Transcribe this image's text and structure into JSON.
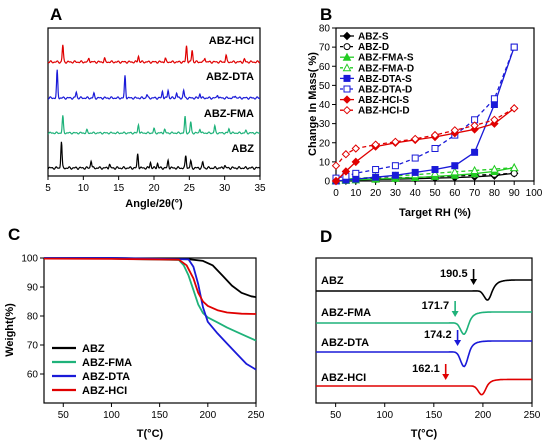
{
  "panels": {
    "a": "A",
    "b": "B",
    "c": "C",
    "d": "D"
  },
  "colors": {
    "ABZ": "#000000",
    "ABZ-FMA": "#1fb27a",
    "ABZ-DTA": "#1a1ad8",
    "ABZ-HCI": "#e00000",
    "FMA-S": "#22cc22",
    "DTA-S": "#1a1ad8",
    "HCI-S": "#e00000"
  },
  "chart_data": [
    {
      "id": "A",
      "type": "line",
      "xlabel": "Angle/2θ(°)",
      "ylabel": "",
      "xlim": [
        5,
        35
      ],
      "xticks": [
        5,
        10,
        15,
        20,
        25,
        30,
        35
      ],
      "series": [
        {
          "name": "ABZ-HCI",
          "color": "#e00000",
          "peaks": [
            [
              7.1,
              1.0
            ],
            [
              10.8,
              0.22
            ],
            [
              13.0,
              0.2
            ],
            [
              17.8,
              0.35
            ],
            [
              21.6,
              0.2
            ],
            [
              24.6,
              0.95
            ],
            [
              25.4,
              0.7
            ],
            [
              27.2,
              0.25
            ],
            [
              30.2,
              0.4
            ],
            [
              32.8,
              0.15
            ]
          ]
        },
        {
          "name": "ABZ-DTA",
          "color": "#1a1ad8",
          "peaks": [
            [
              6.3,
              1.6
            ],
            [
              9.0,
              0.35
            ],
            [
              11.5,
              0.25
            ],
            [
              15.9,
              1.3
            ],
            [
              19.0,
              0.2
            ],
            [
              21.2,
              0.4
            ],
            [
              22.0,
              0.45
            ],
            [
              23.2,
              0.3
            ],
            [
              24.2,
              0.45
            ],
            [
              26.5,
              0.25
            ],
            [
              29.0,
              0.2
            ],
            [
              31.5,
              0.15
            ]
          ]
        },
        {
          "name": "ABZ-FMA",
          "color": "#1fb27a",
          "peaks": [
            [
              7.1,
              1.2
            ],
            [
              10.5,
              0.2
            ],
            [
              17.8,
              0.6
            ],
            [
              20.0,
              0.3
            ],
            [
              21.5,
              0.25
            ],
            [
              24.4,
              1.15
            ],
            [
              25.2,
              0.8
            ],
            [
              26.5,
              0.3
            ],
            [
              28.6,
              0.5
            ],
            [
              30.6,
              0.3
            ],
            [
              33.0,
              0.15
            ]
          ]
        },
        {
          "name": "ABZ",
          "color": "#000000",
          "peaks": [
            [
              6.9,
              1.4
            ],
            [
              11.1,
              0.4
            ],
            [
              13.7,
              0.2
            ],
            [
              17.7,
              0.75
            ],
            [
              19.5,
              0.3
            ],
            [
              20.5,
              0.25
            ],
            [
              22.0,
              0.4
            ],
            [
              24.5,
              0.65
            ],
            [
              25.2,
              0.35
            ],
            [
              26.9,
              0.3
            ],
            [
              30.0,
              0.15
            ]
          ]
        }
      ]
    },
    {
      "id": "B",
      "type": "line",
      "xlabel": "Target RH (%)",
      "ylabel": "Change In Mass( %)",
      "xlim": [
        0,
        100
      ],
      "ylim": [
        0,
        80
      ],
      "xticks": [
        0,
        10,
        20,
        30,
        40,
        50,
        60,
        70,
        80,
        90,
        100
      ],
      "yticks": [
        0,
        10,
        20,
        30,
        40,
        50,
        60,
        70,
        80
      ],
      "legend": "top-left",
      "series": [
        {
          "name": "ABZ-S",
          "color": "#000000",
          "marker": "diamond",
          "style": "solid",
          "x": [
            0,
            5,
            10,
            20,
            30,
            40,
            50,
            60,
            70,
            80,
            90
          ],
          "y": [
            0,
            0.2,
            0.5,
            0.8,
            1.0,
            1.2,
            1.5,
            1.8,
            2.2,
            2.8,
            4.0
          ]
        },
        {
          "name": "ABZ-D",
          "color": "#000000",
          "marker": "circle-open",
          "style": "dashed",
          "x": [
            90,
            80,
            70,
            60,
            50,
            40,
            30,
            20,
            10,
            5,
            0
          ],
          "y": [
            4.0,
            3.5,
            3.0,
            2.6,
            2.2,
            1.9,
            1.6,
            1.3,
            1.0,
            0.6,
            0.3
          ]
        },
        {
          "name": "ABZ-FMA-S",
          "color": "#22cc22",
          "marker": "triangle",
          "style": "solid",
          "x": [
            0,
            5,
            10,
            20,
            30,
            40,
            50,
            60,
            70,
            80,
            90
          ],
          "y": [
            0,
            0.3,
            0.6,
            1.0,
            1.4,
            1.8,
            2.4,
            3.0,
            3.8,
            5.0,
            7.0
          ]
        },
        {
          "name": "ABZ-FMA-D",
          "color": "#22cc22",
          "marker": "triangle-open",
          "style": "dashed",
          "x": [
            90,
            80,
            70,
            60,
            50,
            40,
            30,
            20,
            10,
            5,
            0
          ],
          "y": [
            7.0,
            6.2,
            5.5,
            4.8,
            4.0,
            3.3,
            2.6,
            2.0,
            1.4,
            0.9,
            0.5
          ]
        },
        {
          "name": "ABZ-DTA-S",
          "color": "#1a1ad8",
          "marker": "square",
          "style": "solid",
          "x": [
            0,
            5,
            10,
            20,
            30,
            40,
            50,
            60,
            70,
            80,
            90
          ],
          "y": [
            0,
            0.5,
            1.0,
            2.0,
            3.0,
            4.5,
            6.0,
            8.0,
            15.0,
            40.0,
            70.0
          ]
        },
        {
          "name": "ABZ-DTA-D",
          "color": "#1a1ad8",
          "marker": "square-open",
          "style": "dashed",
          "x": [
            90,
            80,
            70,
            60,
            50,
            40,
            30,
            20,
            10,
            5,
            0
          ],
          "y": [
            70.0,
            43.0,
            32.0,
            24.0,
            17.0,
            12.0,
            8.0,
            6.0,
            4.0,
            2.5,
            1.5
          ]
        },
        {
          "name": "ABZ-HCI-S",
          "color": "#e00000",
          "marker": "diamond",
          "style": "solid",
          "x": [
            0,
            5,
            10,
            20,
            30,
            40,
            50,
            60,
            70,
            80,
            90
          ],
          "y": [
            0,
            5.0,
            10.0,
            18.0,
            20.0,
            21.5,
            23.0,
            25.0,
            27.0,
            30.0,
            38.0
          ]
        },
        {
          "name": "ABZ-HCI-D",
          "color": "#e00000",
          "marker": "diamond-open",
          "style": "dashed",
          "x": [
            90,
            80,
            70,
            60,
            50,
            40,
            30,
            20,
            10,
            5,
            0
          ],
          "y": [
            38.0,
            32.0,
            29.0,
            26.5,
            24.0,
            22.0,
            20.5,
            19.0,
            17.0,
            14.0,
            8.0
          ]
        }
      ]
    },
    {
      "id": "C",
      "type": "line",
      "xlabel": "T(°C)",
      "ylabel": "Weight(%)",
      "xlim": [
        30,
        250
      ],
      "ylim": [
        50,
        100
      ],
      "xticks": [
        50,
        100,
        150,
        200,
        250
      ],
      "yticks": [
        60,
        70,
        80,
        90,
        100
      ],
      "legend": "bottom-left",
      "series": [
        {
          "name": "ABZ",
          "color": "#000000",
          "x": [
            30,
            100,
            180,
            195,
            205,
            215,
            225,
            235,
            245,
            250
          ],
          "y": [
            100,
            100,
            99.6,
            99.0,
            97.5,
            94.0,
            90.5,
            88.0,
            86.8,
            86.5
          ]
        },
        {
          "name": "ABZ-FMA",
          "color": "#1fb27a",
          "x": [
            30,
            100,
            170,
            175,
            180,
            185,
            190,
            195,
            200,
            210,
            220,
            230,
            240,
            250
          ],
          "y": [
            100,
            99.8,
            99.3,
            97.5,
            94.0,
            89.0,
            84.0,
            81.0,
            79.5,
            77.8,
            76.0,
            74.5,
            73.0,
            71.5
          ]
        },
        {
          "name": "ABZ-DTA",
          "color": "#1a1ad8",
          "x": [
            30,
            100,
            180,
            185,
            190,
            195,
            200,
            210,
            220,
            230,
            240,
            250
          ],
          "y": [
            100,
            100,
            99.5,
            97.0,
            91.0,
            83.0,
            78.0,
            74.0,
            70.5,
            67.0,
            63.5,
            61.5
          ]
        },
        {
          "name": "ABZ-HCI",
          "color": "#e00000",
          "x": [
            30,
            100,
            170,
            178,
            185,
            190,
            195,
            200,
            210,
            220,
            235,
            250
          ],
          "y": [
            99.8,
            99.7,
            99.4,
            97.5,
            93.0,
            88.0,
            85.0,
            83.5,
            82.0,
            81.2,
            80.8,
            80.7
          ]
        }
      ]
    },
    {
      "id": "D",
      "type": "line",
      "xlabel": "T(°C)",
      "ylabel": "",
      "xlim": [
        30,
        250
      ],
      "xticks": [
        50,
        100,
        150,
        200,
        250
      ],
      "series": [
        {
          "name": "ABZ",
          "color": "#000000",
          "onset": 190.5,
          "peak": 205,
          "depth": 0.5,
          "base": 0.9,
          "rise": 0.5
        },
        {
          "name": "ABZ-FMA",
          "color": "#1fb27a",
          "onset": 171.7,
          "peak": 181,
          "depth": 0.6,
          "base": 0.0,
          "rise": 0.5
        },
        {
          "name": "ABZ-DTA",
          "color": "#1a1ad8",
          "onset": 174.2,
          "peak": 181,
          "depth": 0.75,
          "base": 0.0,
          "rise": 0.5
        },
        {
          "name": "ABZ-HCI",
          "color": "#e00000",
          "onset": 162.1,
          "peak": 199,
          "depth": 0.45,
          "base": 0.0,
          "rise": 0.3
        }
      ],
      "annotations": [
        "190.5",
        "171.7",
        "174.2",
        "162.1"
      ]
    }
  ]
}
